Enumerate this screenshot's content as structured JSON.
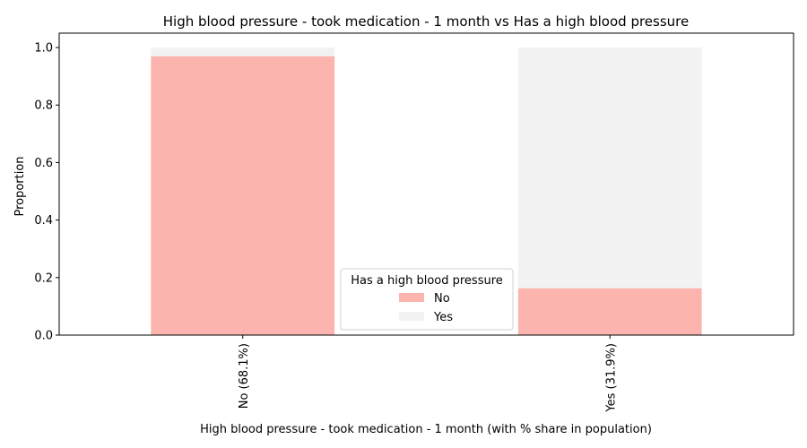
{
  "chart_data": {
    "type": "bar",
    "stacked": true,
    "title": "High blood pressure - took medication - 1 month vs Has a high blood pressure",
    "xlabel": "High blood pressure - took medication - 1 month (with % share in population)",
    "ylabel": "Proportion",
    "categories": [
      "No (68.1%)",
      "Yes (31.9%)"
    ],
    "series": [
      {
        "name": "No",
        "values": [
          0.97,
          0.163
        ],
        "color": "#fbb4ae"
      },
      {
        "name": "Yes",
        "values": [
          0.03,
          0.837
        ],
        "color": "#f2f2f2"
      }
    ],
    "ylim": [
      0,
      1.05
    ],
    "yticks": [
      "0.0",
      "0.2",
      "0.4",
      "0.6",
      "0.8",
      "1.0"
    ],
    "grid": false,
    "legend": {
      "title": "Has a high blood pressure",
      "placement": "bottom-center"
    }
  }
}
